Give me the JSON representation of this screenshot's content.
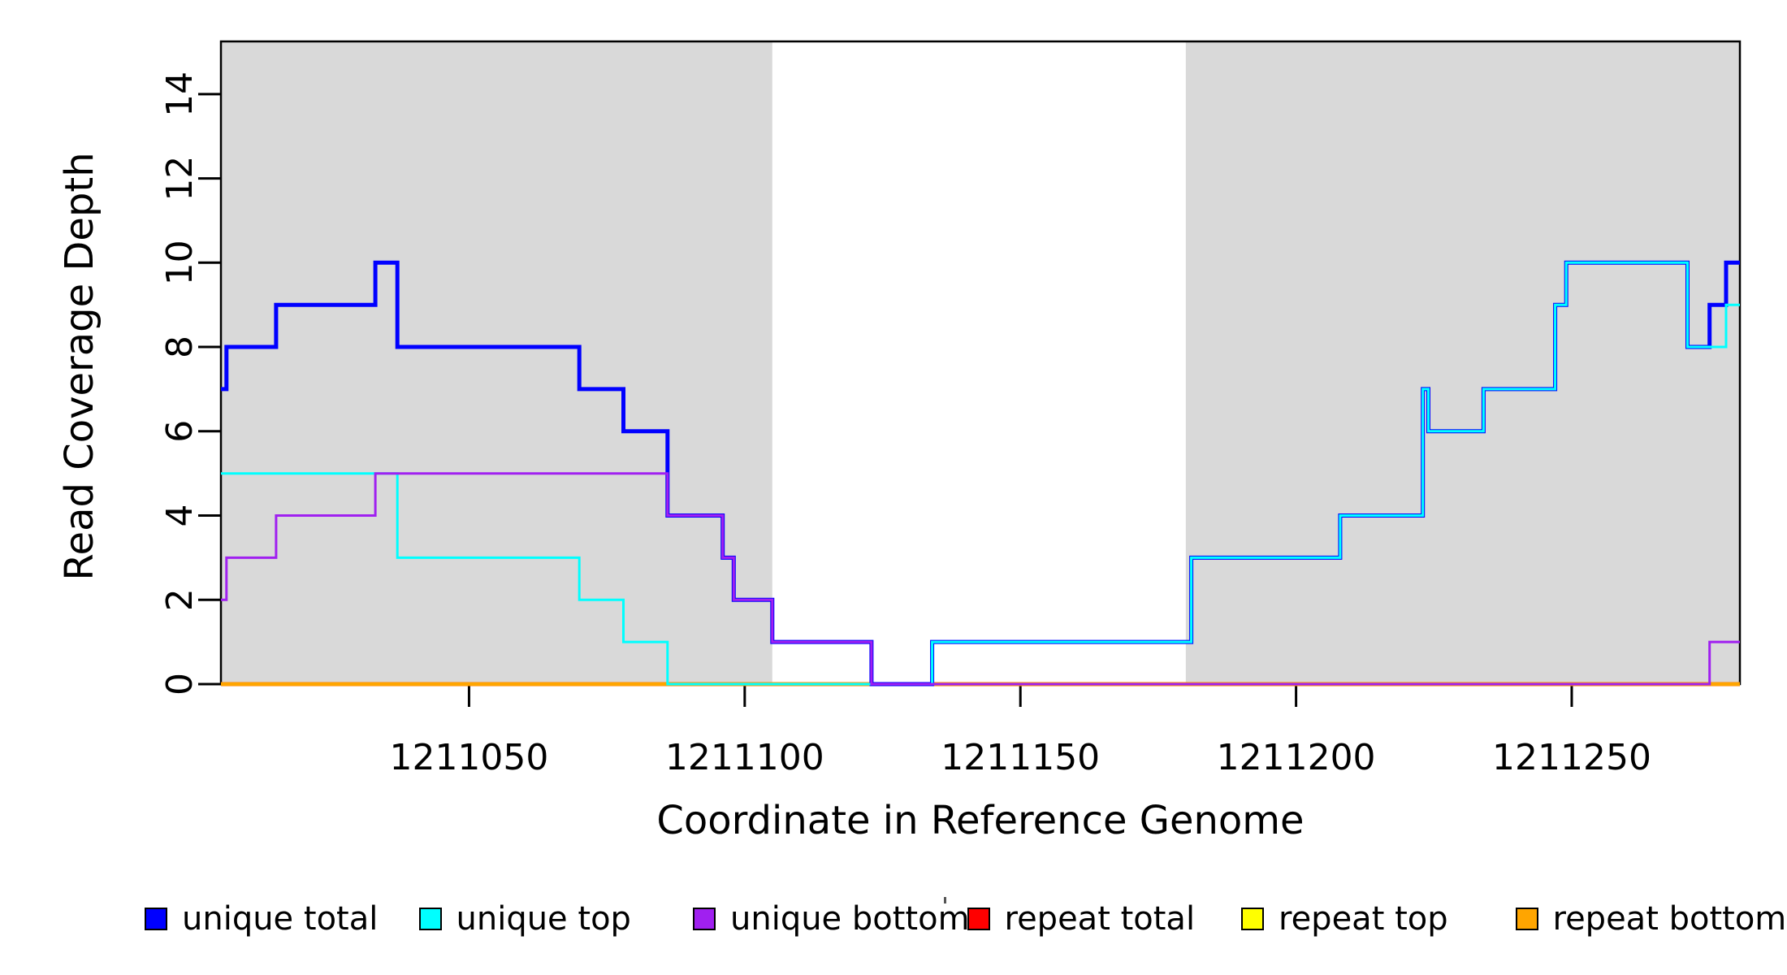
{
  "figure": {
    "background": "#FFFFFF",
    "plot_background": "#FFFFFF"
  },
  "axes": {
    "x": {
      "label": "Coordinate in Reference Genome",
      "ticks": [
        1211050,
        1211100,
        1211150,
        1211200,
        1211250
      ],
      "range": [
        1211005,
        1211280.5
      ]
    },
    "y": {
      "label": "Read Coverage Depth",
      "ticks": [
        0,
        2,
        4,
        6,
        8,
        10,
        12,
        14
      ],
      "range": [
        0,
        15.25
      ]
    }
  },
  "chart_data": {
    "type": "line",
    "title": "",
    "xlabel": "Coordinate in Reference Genome",
    "ylabel": "Read Coverage Depth",
    "x_range": [
      1211005,
      1211280.5
    ],
    "y_range": [
      0,
      15.25
    ],
    "step_style": "post",
    "grid": "off",
    "legend_position": "bottom",
    "shaded_regions": [
      {
        "x0": 1211005,
        "x1": 1211105,
        "color": "#D9D9D9"
      },
      {
        "x0": 1211180,
        "x1": 1211280.5,
        "color": "#D9D9D9"
      }
    ],
    "draw_order": [
      "repeat total",
      "repeat top",
      "repeat bottom",
      "unique total",
      "unique top",
      "unique bottom"
    ],
    "series": [
      {
        "name": "unique total",
        "color": "#0000FF",
        "width": 5,
        "points": [
          [
            1211005,
            7
          ],
          [
            1211006,
            8
          ],
          [
            1211015,
            9
          ],
          [
            1211033,
            10
          ],
          [
            1211037,
            8
          ],
          [
            1211070,
            7
          ],
          [
            1211078,
            6
          ],
          [
            1211086,
            4
          ],
          [
            1211096,
            3
          ],
          [
            1211098,
            2
          ],
          [
            1211105,
            1
          ],
          [
            1211123,
            0
          ],
          [
            1211134,
            1
          ],
          [
            1211181,
            3
          ],
          [
            1211208,
            4
          ],
          [
            1211223,
            7
          ],
          [
            1211224,
            6
          ],
          [
            1211234,
            7
          ],
          [
            1211247,
            9
          ],
          [
            1211249,
            10
          ],
          [
            1211271,
            8
          ],
          [
            1211275,
            9
          ],
          [
            1211278,
            10
          ],
          [
            1211280.5,
            10
          ]
        ]
      },
      {
        "name": "unique top",
        "color": "#00FFFF",
        "width": 3,
        "points": [
          [
            1211005,
            5
          ],
          [
            1211037,
            3
          ],
          [
            1211070,
            2
          ],
          [
            1211078,
            1
          ],
          [
            1211086,
            0
          ],
          [
            1211134,
            1
          ],
          [
            1211181,
            3
          ],
          [
            1211208,
            4
          ],
          [
            1211223,
            7
          ],
          [
            1211224,
            6
          ],
          [
            1211234,
            7
          ],
          [
            1211247,
            9
          ],
          [
            1211249,
            10
          ],
          [
            1211271,
            8
          ],
          [
            1211278,
            9
          ],
          [
            1211280.5,
            9
          ]
        ]
      },
      {
        "name": "unique bottom",
        "color": "#A020F0",
        "width": 3,
        "points": [
          [
            1211005,
            2
          ],
          [
            1211006,
            3
          ],
          [
            1211015,
            4
          ],
          [
            1211033,
            5
          ],
          [
            1211086,
            4
          ],
          [
            1211096,
            3
          ],
          [
            1211098,
            2
          ],
          [
            1211105,
            1
          ],
          [
            1211123,
            0
          ],
          [
            1211275,
            1
          ],
          [
            1211280.5,
            1
          ]
        ]
      },
      {
        "name": "repeat total",
        "color": "#FF0000",
        "width": 5,
        "points": [
          [
            1211005,
            0
          ],
          [
            1211280.5,
            0
          ]
        ]
      },
      {
        "name": "repeat top",
        "color": "#FFFF00",
        "width": 4.5,
        "points": [
          [
            1211005,
            0
          ],
          [
            1211280.5,
            0
          ]
        ]
      },
      {
        "name": "repeat bottom",
        "color": "#FFA500",
        "width": 4,
        "points": [
          [
            1211005,
            0
          ],
          [
            1211280.5,
            0
          ]
        ]
      }
    ]
  },
  "legend": {
    "items": [
      {
        "label": "unique total",
        "color": "#0000FF"
      },
      {
        "label": "unique top",
        "color": "#00FFFF"
      },
      {
        "label": "unique bottom",
        "color": "#A020F0"
      },
      {
        "label": "repeat total",
        "color": "#FF0000"
      },
      {
        "label": "repeat top",
        "color": "#FFFF00"
      },
      {
        "label": "repeat bottom",
        "color": "#FFA500"
      }
    ]
  }
}
